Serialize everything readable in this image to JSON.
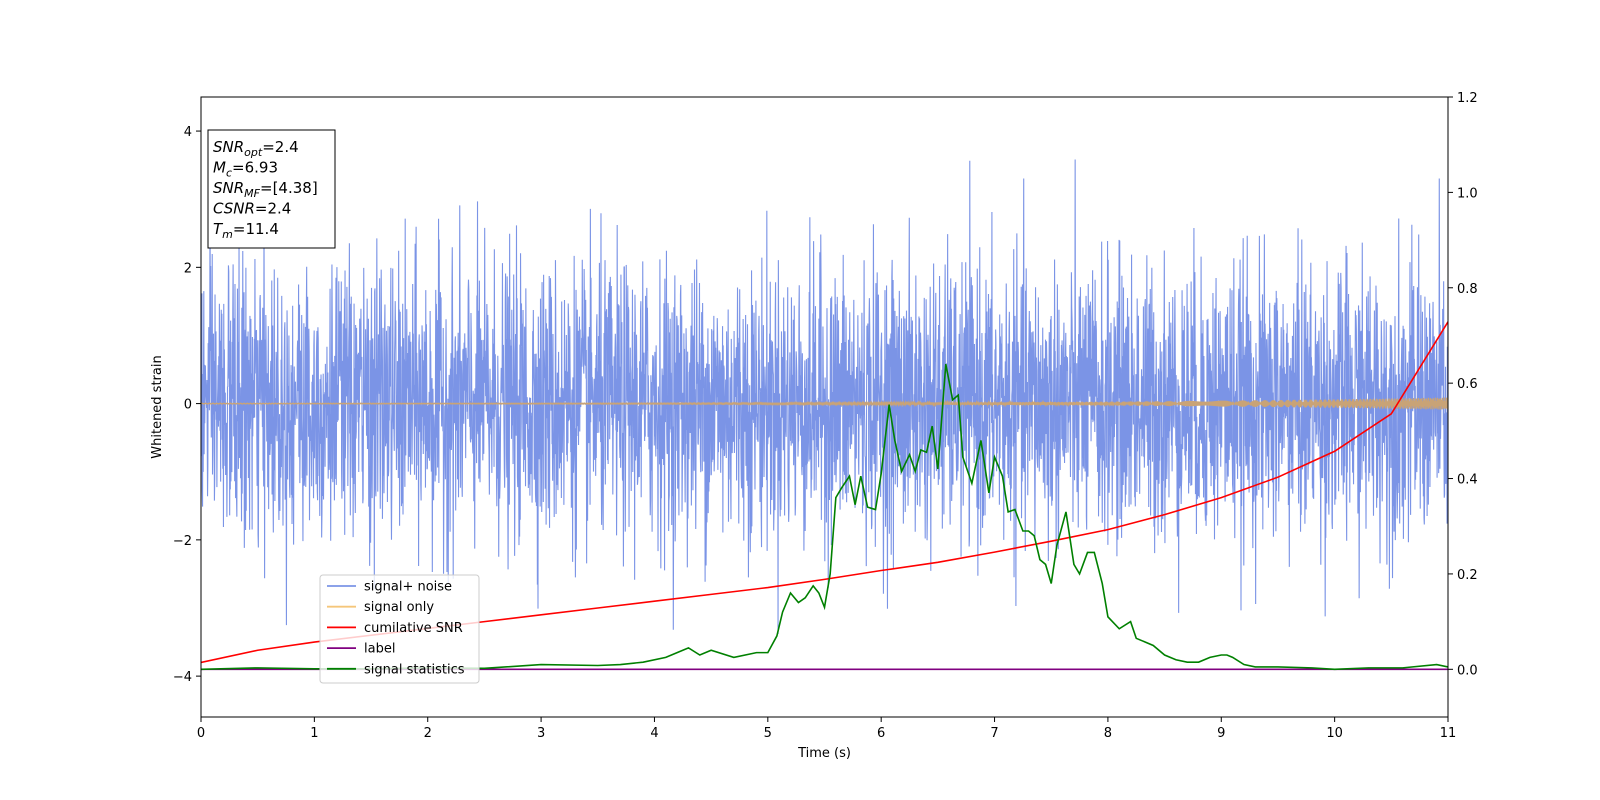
{
  "chart_data": {
    "type": "line",
    "xlabel": "Time (s)",
    "ylabel": "Whitened strain",
    "xlim": [
      0,
      11
    ],
    "ylim": [
      -4.6,
      4.5
    ],
    "y2lim": [
      -0.1,
      1.2
    ],
    "x_ticks": [
      "0",
      "1",
      "2",
      "3",
      "4",
      "5",
      "6",
      "7",
      "8",
      "9",
      "10",
      "11"
    ],
    "y_ticks": [
      "−4",
      "−2",
      "0",
      "2",
      "4"
    ],
    "y2_ticks": [
      "0.0",
      "0.2",
      "0.4",
      "0.6",
      "0.8",
      "1.0",
      "1.2"
    ],
    "legend_position": "lower-left",
    "info_box": [
      {
        "name": "SNR",
        "sub": "opt",
        "value": "=2.4"
      },
      {
        "name": "M",
        "sub": "c",
        "value": "=6.93"
      },
      {
        "name": "SNR",
        "sub": "MF",
        "value": "=[4.38]"
      },
      {
        "name": "CSNR",
        "sub": "",
        "value": "=2.4"
      },
      {
        "name": "T",
        "sub": "m",
        "value": "=11.4"
      }
    ],
    "series": [
      {
        "name": "signal+ noise",
        "color": "#7b94e6",
        "axis": "left",
        "kind": "noise",
        "mean": 0.0,
        "std": 1.0,
        "range": [
          -4.1,
          4.1
        ]
      },
      {
        "name": "signal only",
        "color": "#f5c67a",
        "axis": "left",
        "kind": "chirp",
        "start_amplitude": 0.005,
        "end_amplitude": 0.09
      },
      {
        "name": "cumilative SNR",
        "color": "#ff0000",
        "axis": "left",
        "x": [
          0,
          0.5,
          1,
          1.5,
          2,
          2.5,
          3,
          3.5,
          4,
          4.5,
          5,
          5.5,
          6,
          6.5,
          7,
          7.5,
          8,
          8.5,
          9,
          9.5,
          10,
          10.5,
          11
        ],
        "y": [
          -3.8,
          -3.62,
          -3.5,
          -3.4,
          -3.3,
          -3.2,
          -3.1,
          -3.0,
          -2.9,
          -2.8,
          -2.7,
          -2.58,
          -2.45,
          -2.33,
          -2.18,
          -2.02,
          -1.85,
          -1.63,
          -1.38,
          -1.08,
          -0.7,
          -0.15,
          1.2
        ]
      },
      {
        "name": "label",
        "color": "#800080",
        "axis": "right",
        "x": [
          0,
          11
        ],
        "y": [
          0.0,
          0.0
        ]
      },
      {
        "name": "signal statistics",
        "color": "#008000",
        "axis": "right",
        "x": [
          0,
          0.5,
          1,
          1.5,
          2,
          2.5,
          3,
          3.5,
          3.7,
          3.9,
          4.1,
          4.2,
          4.3,
          4.4,
          4.5,
          4.7,
          4.9,
          5.0,
          5.08,
          5.13,
          5.2,
          5.27,
          5.33,
          5.4,
          5.45,
          5.5,
          5.55,
          5.6,
          5.65,
          5.72,
          5.77,
          5.82,
          5.88,
          5.95,
          6.0,
          6.07,
          6.12,
          6.18,
          6.25,
          6.3,
          6.35,
          6.4,
          6.45,
          6.5,
          6.57,
          6.63,
          6.68,
          6.72,
          6.8,
          6.88,
          6.95,
          7.0,
          7.07,
          7.12,
          7.18,
          7.25,
          7.3,
          7.35,
          7.4,
          7.45,
          7.5,
          7.55,
          7.63,
          7.7,
          7.75,
          7.82,
          7.88,
          7.95,
          8.0,
          8.1,
          8.2,
          8.25,
          8.3,
          8.4,
          8.5,
          8.6,
          8.7,
          8.8,
          8.9,
          9.0,
          9.05,
          9.1,
          9.2,
          9.3,
          9.5,
          9.8,
          10.0,
          10.3,
          10.6,
          10.9,
          11.0
        ],
        "y": [
          0.0,
          0.003,
          0.001,
          0.001,
          0.003,
          0.002,
          0.01,
          0.008,
          0.01,
          0.015,
          0.025,
          0.035,
          0.045,
          0.03,
          0.04,
          0.025,
          0.035,
          0.035,
          0.07,
          0.12,
          0.16,
          0.14,
          0.15,
          0.175,
          0.16,
          0.13,
          0.2,
          0.36,
          0.38,
          0.405,
          0.345,
          0.405,
          0.34,
          0.335,
          0.41,
          0.555,
          0.48,
          0.415,
          0.45,
          0.415,
          0.46,
          0.455,
          0.51,
          0.42,
          0.64,
          0.565,
          0.575,
          0.445,
          0.39,
          0.48,
          0.37,
          0.445,
          0.405,
          0.33,
          0.335,
          0.29,
          0.29,
          0.28,
          0.23,
          0.22,
          0.18,
          0.26,
          0.33,
          0.22,
          0.2,
          0.245,
          0.245,
          0.18,
          0.11,
          0.085,
          0.1,
          0.065,
          0.06,
          0.05,
          0.03,
          0.02,
          0.015,
          0.015,
          0.025,
          0.03,
          0.03,
          0.025,
          0.01,
          0.005,
          0.005,
          0.003,
          0.0,
          0.003,
          0.003,
          0.01,
          0.005
        ]
      }
    ]
  }
}
